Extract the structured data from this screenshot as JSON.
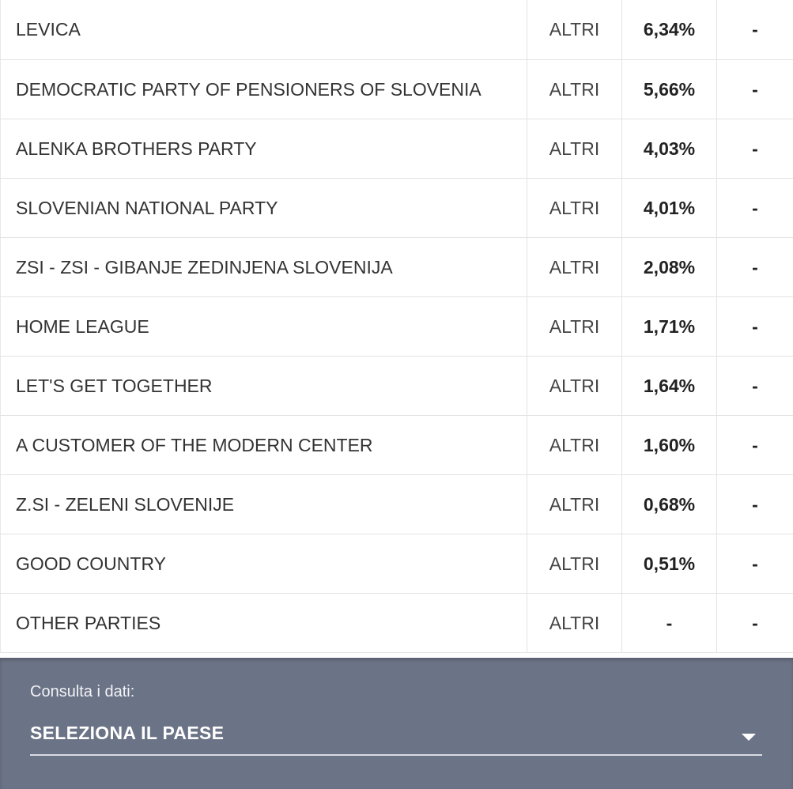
{
  "rows": [
    {
      "party": "LEVICA",
      "group": "ALTRI",
      "percent": "6,34%",
      "seats": "-"
    },
    {
      "party": "DEMOCRATIC PARTY OF PENSIONERS OF SLOVENIA",
      "group": "ALTRI",
      "percent": "5,66%",
      "seats": "-"
    },
    {
      "party": "ALENKA BROTHERS PARTY",
      "group": "ALTRI",
      "percent": "4,03%",
      "seats": "-"
    },
    {
      "party": "SLOVENIAN NATIONAL PARTY",
      "group": "ALTRI",
      "percent": "4,01%",
      "seats": "-"
    },
    {
      "party": "ZSI - ZSI - GIBANJE ZEDINJENA SLOVENIJA",
      "group": "ALTRI",
      "percent": "2,08%",
      "seats": "-"
    },
    {
      "party": "HOME LEAGUE",
      "group": "ALTRI",
      "percent": "1,71%",
      "seats": "-"
    },
    {
      "party": "LET'S GET TOGETHER",
      "group": "ALTRI",
      "percent": "1,64%",
      "seats": "-"
    },
    {
      "party": "A CUSTOMER OF THE MODERN CENTER",
      "group": "ALTRI",
      "percent": "1,60%",
      "seats": "-"
    },
    {
      "party": "Z.SI - ZELENI SLOVENIJE",
      "group": "ALTRI",
      "percent": "0,68%",
      "seats": "-"
    },
    {
      "party": "GOOD COUNTRY",
      "group": "ALTRI",
      "percent": "0,51%",
      "seats": "-"
    },
    {
      "party": "OTHER PARTIES",
      "group": "ALTRI",
      "percent": "-",
      "seats": "-"
    }
  ],
  "footer": {
    "label": "Consulta i dati:",
    "select_value": "SELEZIONA IL PAESE",
    "caret_icon": "caret-down-icon",
    "background_color": "#6b7386"
  }
}
